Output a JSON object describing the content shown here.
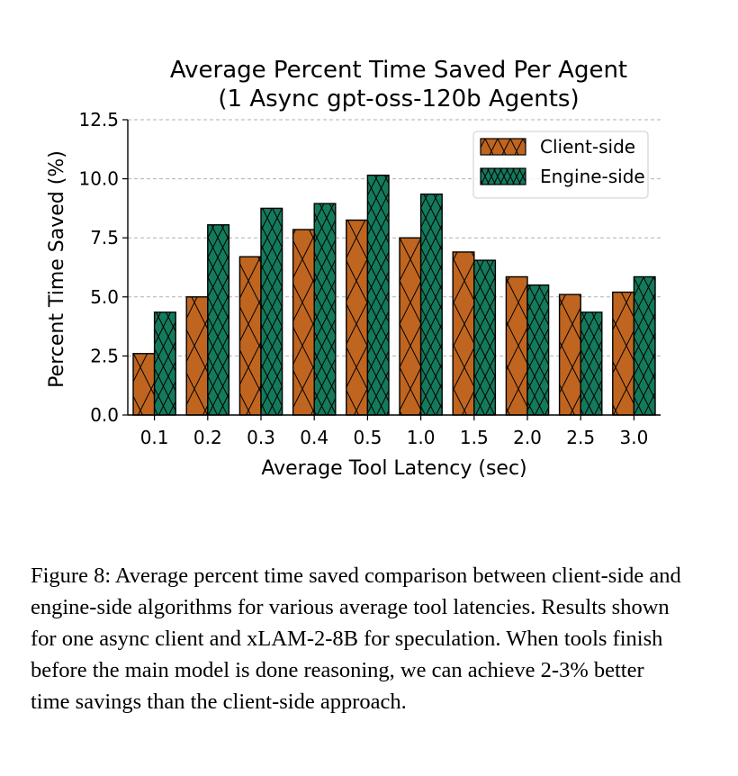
{
  "chart_data": {
    "type": "bar",
    "title": "Average Percent Time Saved Per Agent",
    "subtitle": "(1 Async gpt-oss-120b Agents)",
    "xlabel": "Average Tool Latency (sec)",
    "ylabel": "Percent Time Saved (%)",
    "categories": [
      "0.1",
      "0.2",
      "0.3",
      "0.4",
      "0.5",
      "1.0",
      "1.5",
      "2.0",
      "2.5",
      "3.0"
    ],
    "series": [
      {
        "name": "Client-side",
        "color": "#c0651f",
        "hatch": "x",
        "values": [
          2.6,
          5.0,
          6.7,
          7.85,
          8.25,
          7.5,
          6.9,
          5.85,
          5.1,
          5.2
        ]
      },
      {
        "name": "Engine-side",
        "color": "#147a5c",
        "hatch": "xx",
        "values": [
          4.35,
          8.05,
          8.75,
          8.95,
          10.15,
          9.35,
          6.55,
          5.5,
          4.35,
          5.85
        ]
      }
    ],
    "ylim": [
      0,
      12.5
    ],
    "yticks": [
      "0.0",
      "2.5",
      "5.0",
      "7.5",
      "10.0",
      "12.5"
    ],
    "grid": true,
    "legend_position": "top-right"
  },
  "caption": "Figure 8: Average percent time saved comparison between client-side and engine-side algorithms for various average tool latencies. Results shown for one async client and xLAM-2-8B for speculation. When tools finish before the main model is done reasoning, we can achieve 2-3% better time savings than the client-side approach."
}
